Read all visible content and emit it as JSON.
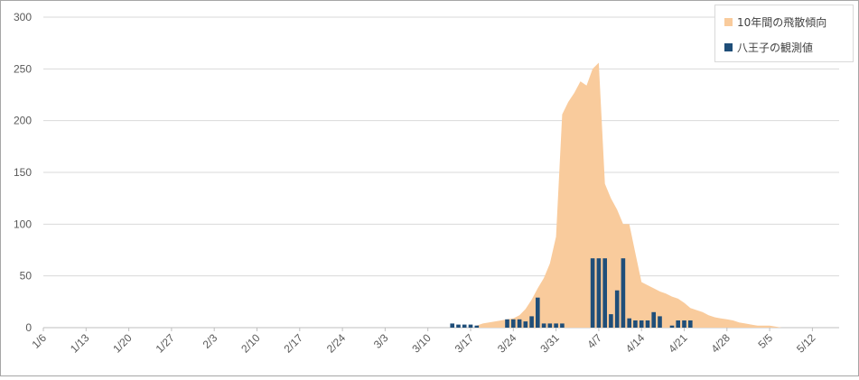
{
  "chart_data": {
    "type": "area+bar",
    "title": "",
    "xlabel": "",
    "ylabel": "",
    "ylim": [
      0,
      300
    ],
    "yticks": [
      0,
      50,
      100,
      150,
      200,
      250,
      300
    ],
    "x_tick_labels": [
      "1/6",
      "1/13",
      "1/20",
      "1/27",
      "2/3",
      "2/10",
      "2/17",
      "2/24",
      "3/3",
      "3/10",
      "3/17",
      "3/24",
      "3/31",
      "4/7",
      "4/14",
      "4/21",
      "4/28",
      "5/5",
      "5/12"
    ],
    "grid": "horizontal",
    "legend_position": "top-right",
    "series": [
      {
        "name": "10年間の飛散傾向",
        "type": "area",
        "color": "#f9cb9c",
        "points": [
          [
            "3/17",
            2
          ],
          [
            "3/18",
            4
          ],
          [
            "3/19",
            5
          ],
          [
            "3/20",
            6
          ],
          [
            "3/21",
            7
          ],
          [
            "3/22",
            8
          ],
          [
            "3/23",
            9
          ],
          [
            "3/24",
            12
          ],
          [
            "3/25",
            18
          ],
          [
            "3/26",
            27
          ],
          [
            "3/27",
            38
          ],
          [
            "3/28",
            48
          ],
          [
            "3/29",
            62
          ],
          [
            "3/30",
            88
          ],
          [
            "3/31",
            206
          ],
          [
            "4/1",
            218
          ],
          [
            "4/2",
            227
          ],
          [
            "4/3",
            238
          ],
          [
            "4/4",
            234
          ],
          [
            "4/5",
            250
          ],
          [
            "4/6",
            256
          ],
          [
            "4/7",
            139
          ],
          [
            "4/8",
            125
          ],
          [
            "4/9",
            114
          ],
          [
            "4/10",
            100
          ],
          [
            "4/11",
            100
          ],
          [
            "4/12",
            72
          ],
          [
            "4/13",
            44
          ],
          [
            "4/14",
            41
          ],
          [
            "4/15",
            38
          ],
          [
            "4/16",
            35
          ],
          [
            "4/17",
            33
          ],
          [
            "4/18",
            30
          ],
          [
            "4/19",
            28
          ],
          [
            "4/20",
            24
          ],
          [
            "4/21",
            19
          ],
          [
            "4/22",
            17
          ],
          [
            "4/23",
            15
          ],
          [
            "4/24",
            12
          ],
          [
            "4/25",
            10
          ],
          [
            "4/26",
            9
          ],
          [
            "4/27",
            8
          ],
          [
            "4/28",
            7
          ],
          [
            "4/29",
            5
          ],
          [
            "4/30",
            4
          ],
          [
            "5/1",
            3
          ],
          [
            "5/2",
            2
          ],
          [
            "5/3",
            2
          ],
          [
            "5/4",
            2
          ],
          [
            "5/5",
            1
          ],
          [
            "5/6",
            0
          ]
        ]
      },
      {
        "name": "八王子の観測値",
        "type": "bar",
        "color": "#1f4e79",
        "points": [
          [
            "3/13",
            4
          ],
          [
            "3/14",
            3
          ],
          [
            "3/15",
            3
          ],
          [
            "3/16",
            3
          ],
          [
            "3/17",
            2
          ],
          [
            "3/22",
            8
          ],
          [
            "3/23",
            8
          ],
          [
            "3/24",
            8
          ],
          [
            "3/25",
            6
          ],
          [
            "3/26",
            11
          ],
          [
            "3/27",
            29
          ],
          [
            "3/28",
            4
          ],
          [
            "3/29",
            4
          ],
          [
            "3/30",
            4
          ],
          [
            "3/31",
            4
          ],
          [
            "4/5",
            67
          ],
          [
            "4/6",
            67
          ],
          [
            "4/7",
            67
          ],
          [
            "4/8",
            13
          ],
          [
            "4/9",
            36
          ],
          [
            "4/10",
            67
          ],
          [
            "4/11",
            9
          ],
          [
            "4/12",
            7
          ],
          [
            "4/13",
            7
          ],
          [
            "4/14",
            7
          ],
          [
            "4/15",
            15
          ],
          [
            "4/16",
            11
          ],
          [
            "4/18",
            2
          ],
          [
            "4/19",
            7
          ],
          [
            "4/20",
            7
          ],
          [
            "4/21",
            7
          ]
        ]
      }
    ]
  }
}
